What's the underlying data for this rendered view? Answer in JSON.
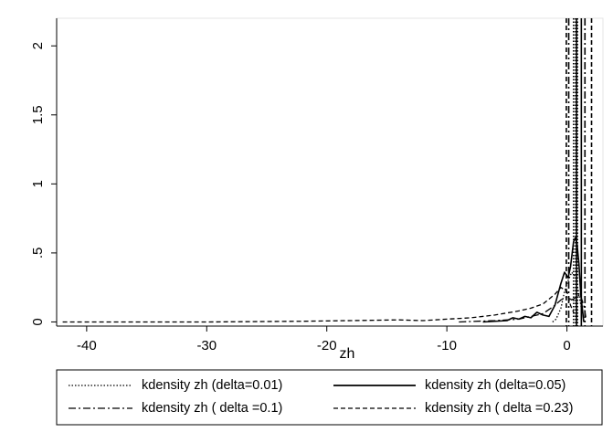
{
  "chart_data": {
    "type": "line",
    "xlabel": "zh",
    "ylabel": "",
    "xlim": [
      -42.5,
      3
    ],
    "ylim": [
      -0.03,
      2.2
    ],
    "x_ticks": [
      {
        "value": -40,
        "label": "-40"
      },
      {
        "value": -30,
        "label": "-30"
      },
      {
        "value": -20,
        "label": "-20"
      },
      {
        "value": -10,
        "label": "-10"
      },
      {
        "value": 0,
        "label": "0"
      }
    ],
    "y_ticks": [
      {
        "value": 0,
        "label": "0"
      },
      {
        "value": 0.5,
        "label": ".5"
      },
      {
        "value": 1,
        "label": "1"
      },
      {
        "value": 1.5,
        "label": "1.5"
      },
      {
        "value": 2,
        "label": "2"
      }
    ],
    "legend_position": "bottom",
    "series": [
      {
        "name": "kdensity zh (delta=0.01)",
        "dash": "dotted",
        "color": "#000000",
        "points": [
          [
            -1.2,
            0
          ],
          [
            -0.9,
            0.02
          ],
          [
            -0.5,
            0.1
          ],
          [
            -0.2,
            0.22
          ],
          [
            0.1,
            0.3
          ],
          [
            0.4,
            0.36
          ],
          [
            0.7,
            0.33
          ],
          [
            0.9,
            0.25
          ],
          [
            1.1,
            0.15
          ],
          [
            1.3,
            0.05
          ]
        ],
        "vlines": [
          0.55,
          0.72,
          0.88
        ]
      },
      {
        "name": "kdensity zh (delta=0.05)",
        "dash": "solid",
        "color": "#000000",
        "points": [
          [
            -7,
            0
          ],
          [
            -5,
            0.01
          ],
          [
            -4.5,
            0.03
          ],
          [
            -4,
            0.02
          ],
          [
            -3.5,
            0.04
          ],
          [
            -3,
            0.03
          ],
          [
            -2.5,
            0.07
          ],
          [
            -2,
            0.05
          ],
          [
            -1.5,
            0.04
          ],
          [
            -1,
            0.12
          ],
          [
            -0.5,
            0.28
          ],
          [
            -0.2,
            0.36
          ],
          [
            0.1,
            0.32
          ],
          [
            0.3,
            0.4
          ],
          [
            0.55,
            0.58
          ],
          [
            0.7,
            0.61
          ],
          [
            0.85,
            0.56
          ],
          [
            1.0,
            0.42
          ],
          [
            1.15,
            0.2
          ],
          [
            1.3,
            0.08
          ],
          [
            1.4,
            0
          ]
        ],
        "vlines": [
          0.8,
          1.2
        ]
      },
      {
        "name": "kdensity zh ( delta =0.1)",
        "dash": "dashdot",
        "color": "#000000",
        "points": [
          [
            -9,
            0
          ],
          [
            -6,
            0.01
          ],
          [
            -4,
            0.02
          ],
          [
            -2,
            0.06
          ],
          [
            -1,
            0.12
          ],
          [
            -0.5,
            0.16
          ],
          [
            0,
            0.18
          ],
          [
            0.4,
            0.16
          ],
          [
            0.8,
            0.18
          ],
          [
            1.1,
            0.2
          ],
          [
            1.4,
            0.12
          ],
          [
            1.6,
            0.02
          ]
        ],
        "vlines": [
          0.15,
          1.5
        ]
      },
      {
        "name": "kdensity zh ( delta =0.23)",
        "dash": "dashed",
        "color": "#000000",
        "points": [
          [
            -42,
            0
          ],
          [
            -30,
            0
          ],
          [
            -22,
            0.005
          ],
          [
            -18,
            0.01
          ],
          [
            -14,
            0.015
          ],
          [
            -12,
            0.01
          ],
          [
            -10,
            0.02
          ],
          [
            -8,
            0.03
          ],
          [
            -6,
            0.05
          ],
          [
            -4,
            0.08
          ],
          [
            -3,
            0.1
          ],
          [
            -2,
            0.13
          ],
          [
            -1,
            0.2
          ],
          [
            -0.5,
            0.25
          ],
          [
            0,
            0.22
          ],
          [
            0.3,
            0.12
          ],
          [
            0.6,
            0.06
          ]
        ],
        "vlines": [
          -0.05,
          2.05
        ]
      }
    ]
  }
}
